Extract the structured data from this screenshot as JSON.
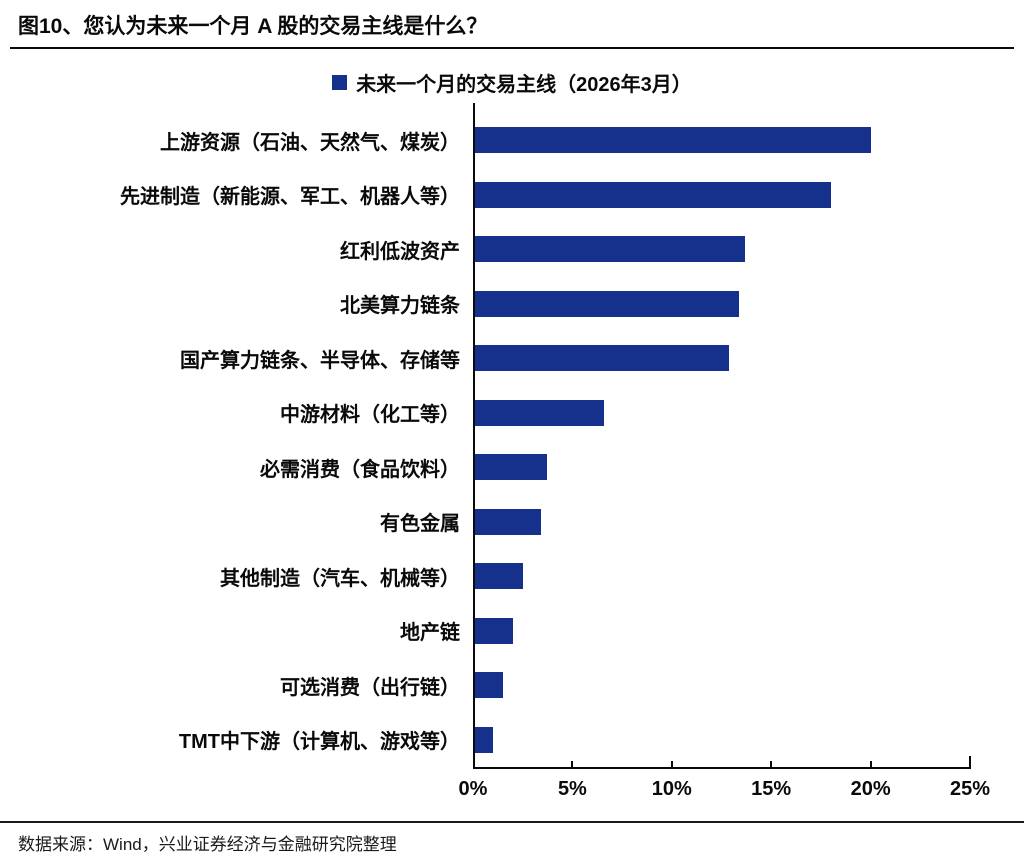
{
  "page": {
    "title": "图10、您认为未来一个月 A 股的交易主线是什么？",
    "source": "数据来源：Wind，兴业证券经济与金融研究院整理"
  },
  "legend": {
    "label": "未来一个月的交易主线（2026年3月）"
  },
  "colors": {
    "bar": "#16318C",
    "axis": "#0a0a0a"
  },
  "chart_data": {
    "type": "bar",
    "orientation": "horizontal",
    "title": "未来一个月的交易主线（2026年3月）",
    "categories": [
      "上游资源（石油、天然气、煤炭）",
      "先进制造（新能源、军工、机器人等）",
      "红利低波资产",
      "北美算力链条",
      "国产算力链条、半导体、存储等",
      "中游材料（化工等）",
      "必需消费（食品饮料）",
      "有色金属",
      "其他制造（汽车、机械等）",
      "地产链",
      "可选消费（出行链）",
      "TMT中下游（计算机、游戏等）"
    ],
    "values": [
      20.0,
      18.0,
      13.7,
      13.4,
      12.9,
      6.6,
      3.7,
      3.4,
      2.5,
      2.0,
      1.5,
      1.0
    ],
    "unit": "%",
    "xlabel": "",
    "ylabel": "",
    "xlim": [
      0,
      25
    ],
    "xticks": [
      "0%",
      "5%",
      "10%",
      "15%",
      "20%",
      "25%"
    ],
    "grid": false,
    "legend_position": "top-center"
  }
}
